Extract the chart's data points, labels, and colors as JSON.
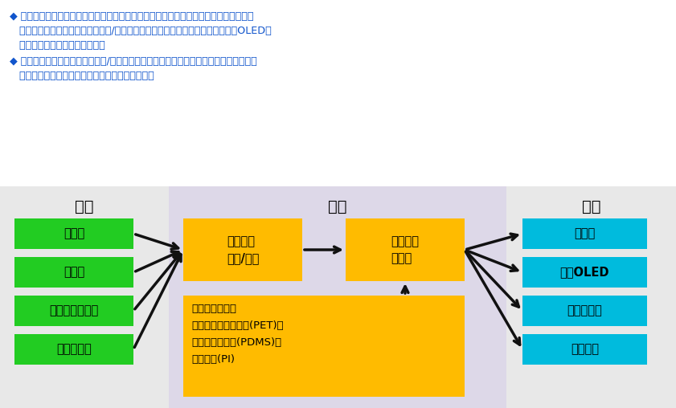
{
  "text_lines": [
    "◆ 从纳米銀线导电膜的产业链来看，上游是硕酸銀、乙二醇、聚乙烯吹唏烷酮等常用基础",
    "   化工品原料，中游是纳米銀线浆料/墨水与纳米銀线导电膜，下游是触控屏、柔性OLED、",
    "   太阳能电池、智能窗膜等应用。",
    "◆ 产业链的核心在于纳米銀线浆料/墨水的制备，与纳米銀线透明导电膜的生产，前者涉及",
    "   到原料配方及处理工艺，后者涉及到设备及工艺。"
  ],
  "upstream_title": "上游",
  "midstream_title": "中游",
  "downstream_title": "下游",
  "upstream_boxes": [
    "硕酸銀",
    "乙二醇",
    "聚乙烯吹唏烷酮",
    "其他添加剂"
  ],
  "midstream_top_left": "纳米銀线\n浆料/墨水",
  "midstream_top_right": "纳米銀线\n导电膜",
  "midstream_bottom_title": "柔性衬底材料：",
  "midstream_bottom_lines": [
    "职对苯二甲酸乙二醒（PET）、",
    "职二甲基硅氧烷（PDMS）、",
    "职酰亚胺（PI）"
  ],
  "midstream_bottom_raw": "柔性衬底材料：\n职对苯二甲酸乙二醒（PET）、\n职二甲基硅氧烷（PDMS）、\n职酰亚胺（PI）",
  "downstream_boxes": [
    "触控屏",
    "柔性OLED",
    "太阳能电池",
    "智能窗膜"
  ],
  "upstream_bg": "#e8e8e8",
  "midstream_bg": "#ddd8e8",
  "downstream_bg": "#e8e8e8",
  "green_color": "#22cc22",
  "cyan_color": "#00bbdd",
  "yellow_color": "#ffbb00",
  "arrow_color": "#111111",
  "text_color": "#1155cc",
  "black": "#000000",
  "white": "#ffffff"
}
